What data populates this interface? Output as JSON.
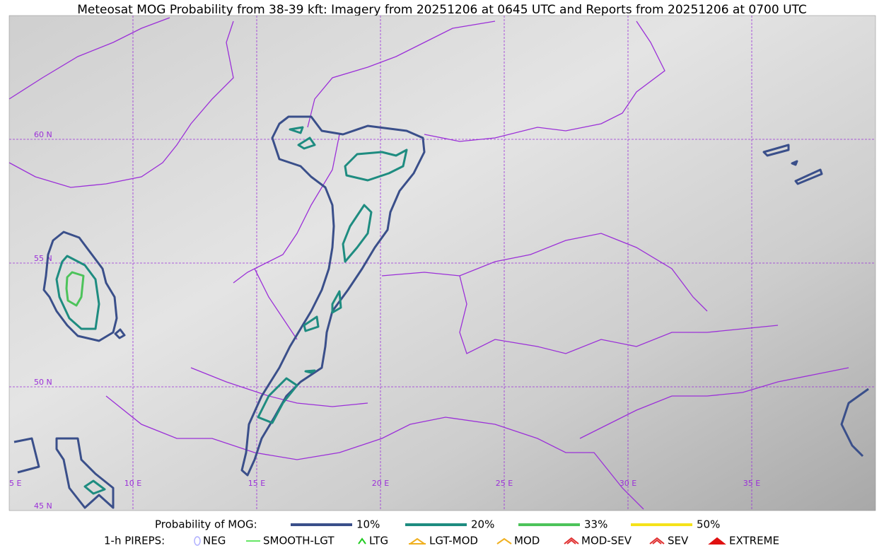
{
  "title": "Meteosat MOG Probability from 38-39 kft: Imagery from 20251206 at 0645 UTC and Reports from 20251206 at 0700 UTC",
  "map": {
    "lon_labels": [
      "5 E",
      "10 E",
      "15 E",
      "20 E",
      "25 E",
      "30 E",
      "35 E"
    ],
    "lat_labels": [
      "45 N",
      "50 N",
      "55 N",
      "60 N"
    ]
  },
  "legend": {
    "title": "Probability of MOG:",
    "items": [
      {
        "label": "10%",
        "color": "#3a4f8a"
      },
      {
        "label": "20%",
        "color": "#1e8c80"
      },
      {
        "label": "33%",
        "color": "#4cc35a"
      },
      {
        "label": "50%",
        "color": "#f5e21a"
      }
    ]
  },
  "pireps": {
    "title": "1-h PIREPS:",
    "items": [
      {
        "label": "NEG",
        "color": "#b0b0ff"
      },
      {
        "label": "SMOOTH-LGT",
        "color": "#33dd33"
      },
      {
        "label": "LTG",
        "color": "#22cc22"
      },
      {
        "label": "LGT-MOD",
        "color": "#f0b020"
      },
      {
        "label": "MOD",
        "color": "#f0b020"
      },
      {
        "label": "MOD-SEV",
        "color": "#e03030"
      },
      {
        "label": "SEV",
        "color": "#e03030"
      },
      {
        "label": "EXTREME",
        "color": "#e01010"
      }
    ]
  }
}
